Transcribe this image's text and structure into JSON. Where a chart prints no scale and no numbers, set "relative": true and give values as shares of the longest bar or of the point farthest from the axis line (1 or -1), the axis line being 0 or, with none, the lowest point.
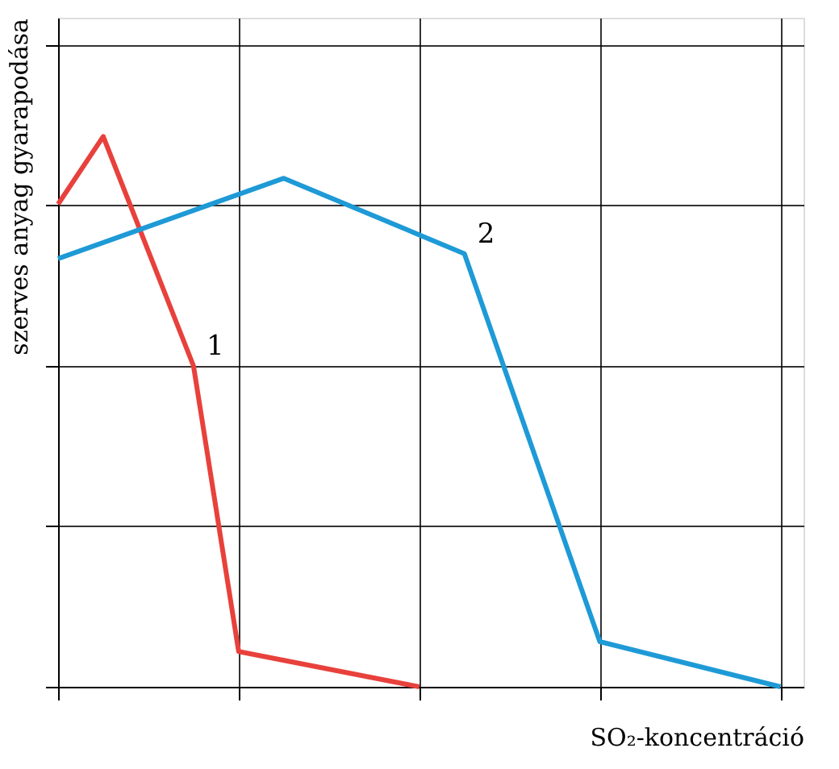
{
  "chart_data": {
    "type": "line",
    "relative": true,
    "xlabel": "SO₂-koncentráció",
    "ylabel": "szerves anyag gyarapodása",
    "categories": [
      null,
      null,
      null,
      null,
      null,
      null,
      null,
      null,
      null,
      null,
      null,
      null,
      null,
      null,
      null,
      null,
      null
    ],
    "grid": true,
    "legend": false,
    "marker": "none",
    "line_style": "solid",
    "series": [
      {
        "name": "1",
        "color": "#e8413c",
        "values": [
          0.877,
          1,
          null,
          0.583,
          0.064,
          null,
          null,
          null,
          0,
          null,
          null,
          null,
          null,
          null,
          null,
          null,
          null
        ]
      },
      {
        "name": "2",
        "color": "#1e9ad6",
        "values": [
          0.778,
          null,
          null,
          null,
          null,
          0.924,
          null,
          null,
          null,
          0.787,
          null,
          null,
          0.082,
          null,
          null,
          null,
          0
        ]
      }
    ]
  }
}
